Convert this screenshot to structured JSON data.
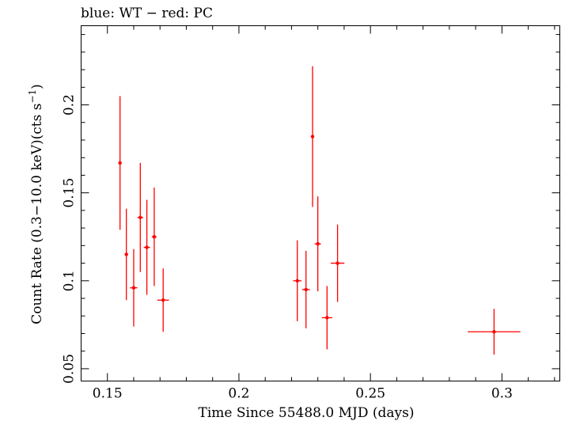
{
  "chart_data": {
    "type": "scatter",
    "title": "blue: WT − red: PC",
    "xlabel": "Time Since 55488.0 MJD (days)",
    "ylabel_main": "Count Rate (0.3−10.0 keV)(cts s",
    "ylabel_sup": "−1",
    "ylabel_tail": ")",
    "xlim": [
      0.14,
      0.322
    ],
    "ylim": [
      0.043,
      0.245
    ],
    "x_ticks": [
      {
        "value": 0.15,
        "label": "0.15"
      },
      {
        "value": 0.2,
        "label": "0.2"
      },
      {
        "value": 0.25,
        "label": "0.25"
      },
      {
        "value": 0.3,
        "label": "0.3"
      }
    ],
    "y_ticks": [
      {
        "value": 0.05,
        "label": "0.05"
      },
      {
        "value": 0.1,
        "label": "0.1"
      },
      {
        "value": 0.15,
        "label": "0.15"
      },
      {
        "value": 0.2,
        "label": "0.2"
      }
    ],
    "x_minor_step": 0.01,
    "y_minor_step": 0.01,
    "grid": false,
    "series": [
      {
        "color": "#ff0000",
        "points": [
          {
            "x": 0.1548,
            "y": 0.167,
            "xerr": 0.0005,
            "yerr": 0.038
          },
          {
            "x": 0.1572,
            "y": 0.115,
            "xerr": 0.0006,
            "yerr": 0.026
          },
          {
            "x": 0.16,
            "y": 0.096,
            "xerr": 0.0014,
            "yerr": 0.022
          },
          {
            "x": 0.1625,
            "y": 0.136,
            "xerr": 0.0011,
            "yerr": 0.031
          },
          {
            "x": 0.165,
            "y": 0.119,
            "xerr": 0.0012,
            "yerr": 0.027
          },
          {
            "x": 0.1678,
            "y": 0.125,
            "xerr": 0.0009,
            "yerr": 0.028
          },
          {
            "x": 0.1712,
            "y": 0.089,
            "xerr": 0.0022,
            "yerr": 0.018
          },
          {
            "x": 0.2222,
            "y": 0.1,
            "xerr": 0.0016,
            "yerr": 0.023
          },
          {
            "x": 0.2255,
            "y": 0.095,
            "xerr": 0.0015,
            "yerr": 0.022
          },
          {
            "x": 0.228,
            "y": 0.182,
            "xerr": 0.0005,
            "yerr": 0.04
          },
          {
            "x": 0.23,
            "y": 0.121,
            "xerr": 0.0012,
            "yerr": 0.027
          },
          {
            "x": 0.2335,
            "y": 0.079,
            "xerr": 0.002,
            "yerr": 0.018
          },
          {
            "x": 0.2375,
            "y": 0.11,
            "xerr": 0.0026,
            "yerr": 0.022
          },
          {
            "x": 0.297,
            "y": 0.071,
            "xerr": 0.01,
            "yerr": 0.013
          }
        ]
      }
    ]
  }
}
